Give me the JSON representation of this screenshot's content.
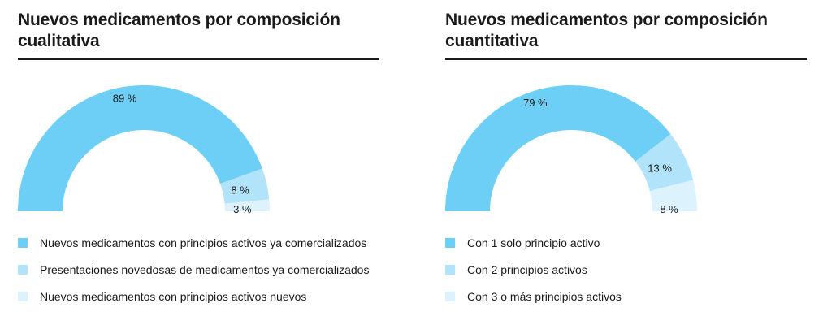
{
  "chart_data": [
    {
      "type": "pie",
      "title": "Nuevos medicamentos por composición cualitativa",
      "slices": [
        {
          "label": "Nuevos medicamentos con principios activos ya comercializados",
          "value": 89,
          "value_label": "89 %",
          "color": "#6ecff6"
        },
        {
          "label": "Presentaciones novedosas de medicamentos ya comercializados",
          "value": 8,
          "value_label": "8 %",
          "color": "#b1e4fa"
        },
        {
          "label": "Nuevos medicamentos con principios activos nuevos",
          "value": 3,
          "value_label": "3 %",
          "color": "#dcf2fc"
        }
      ]
    },
    {
      "type": "pie",
      "title": "Nuevos medicamentos por composición cuantitativa",
      "slices": [
        {
          "label": "Con 1 solo principio activo",
          "value": 79,
          "value_label": "79 %",
          "color": "#6ecff6"
        },
        {
          "label": "Con 2 principios activos",
          "value": 13,
          "value_label": "13 %",
          "color": "#b1e4fa"
        },
        {
          "label": "Con 3 o más principios activos",
          "value": 8,
          "value_label": "8 %",
          "color": "#dcf2fc"
        }
      ]
    }
  ]
}
